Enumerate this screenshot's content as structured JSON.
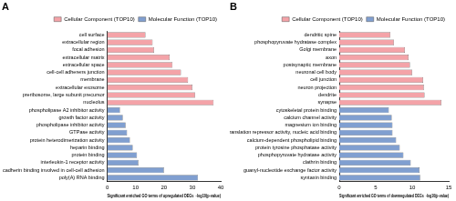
{
  "chart_data": [
    {
      "type": "bar",
      "title": "A",
      "orientation": "horizontal",
      "grid": false,
      "legend": "top",
      "xlabel": "Significant enriched GO terms of upregulated DEGs  -log10(p-value)",
      "xlim": [
        0,
        40
      ],
      "xticks": [
        0,
        10,
        20,
        30,
        40
      ],
      "categories": [
        "cell surface",
        "extracellular region",
        "focal adhesion",
        "extracellular matrix",
        "extracellular space",
        "cell-cell adherens junction",
        "membrane",
        "extracellular exosome",
        "preribosome, large subunit precursor",
        "nucleolus",
        "phospholipase A2 inhibitor activity",
        "growth factor activity",
        "phospholipase inhibitor activity",
        "GTPase activity",
        "protein heterodimerization activity",
        "heparin binding",
        "protein binding",
        "interleukin-1 receptor activity",
        "cadherin binding involved in cell-cell adhesion",
        "poly(A) RNA binding"
      ],
      "series": [
        {
          "name": "Cellular Component (TOP10)",
          "color": "#f4a3a8",
          "values": [
            13.5,
            16,
            16.5,
            22,
            23,
            26,
            28.5,
            30,
            31,
            37.5,
            null,
            null,
            null,
            null,
            null,
            null,
            null,
            null,
            null,
            null
          ]
        },
        {
          "name": "Molecular Function (TOP10)",
          "color": "#809fd0",
          "values": [
            null,
            null,
            null,
            null,
            null,
            null,
            null,
            null,
            null,
            null,
            4.5,
            5.5,
            6.5,
            7,
            8,
            9,
            10.5,
            11,
            20,
            32
          ]
        }
      ]
    },
    {
      "type": "bar",
      "title": "B",
      "orientation": "horizontal",
      "grid": false,
      "legend": "top",
      "xlabel": "Significant enriched GO terms of downregulated DEGs  -log10(p-value)",
      "xlim": [
        0,
        15
      ],
      "xticks": [
        0,
        5,
        10,
        15
      ],
      "categories": [
        "dendritic spine",
        "phosphopyruvate hydratase complex",
        "Golgi membrane",
        "axon",
        "postsynaptic membrane",
        "neuronal cell body",
        "cell junction",
        "neuron projection",
        "dendrite",
        "synapse",
        "cytoskeletal protein binding",
        "calcium channel activity",
        "magnesium ion binding",
        "translation repressor activity, nucleic acid binding",
        "calcium-dependent phospholipid binding",
        "protein tyrosine phosphatase activity",
        "phosphopyruvate hydratase activity",
        "clathrin binding",
        "guanyl-nucleotide exchange factor activity",
        "syntaxin binding"
      ],
      "series": [
        {
          "name": "Cellular Component (TOP10)",
          "color": "#f4a3a8",
          "values": [
            7,
            7.5,
            9,
            9.5,
            9.7,
            10,
            11.5,
            11.6,
            11.7,
            14,
            null,
            null,
            null,
            null,
            null,
            null,
            null,
            null,
            null,
            null
          ]
        },
        {
          "name": "Molecular Function (TOP10)",
          "color": "#809fd0",
          "values": [
            null,
            null,
            null,
            null,
            null,
            null,
            null,
            null,
            null,
            null,
            6.8,
            7.2,
            7.3,
            7.3,
            7.8,
            8.3,
            8.8,
            9.8,
            11,
            11.1
          ]
        }
      ]
    }
  ]
}
